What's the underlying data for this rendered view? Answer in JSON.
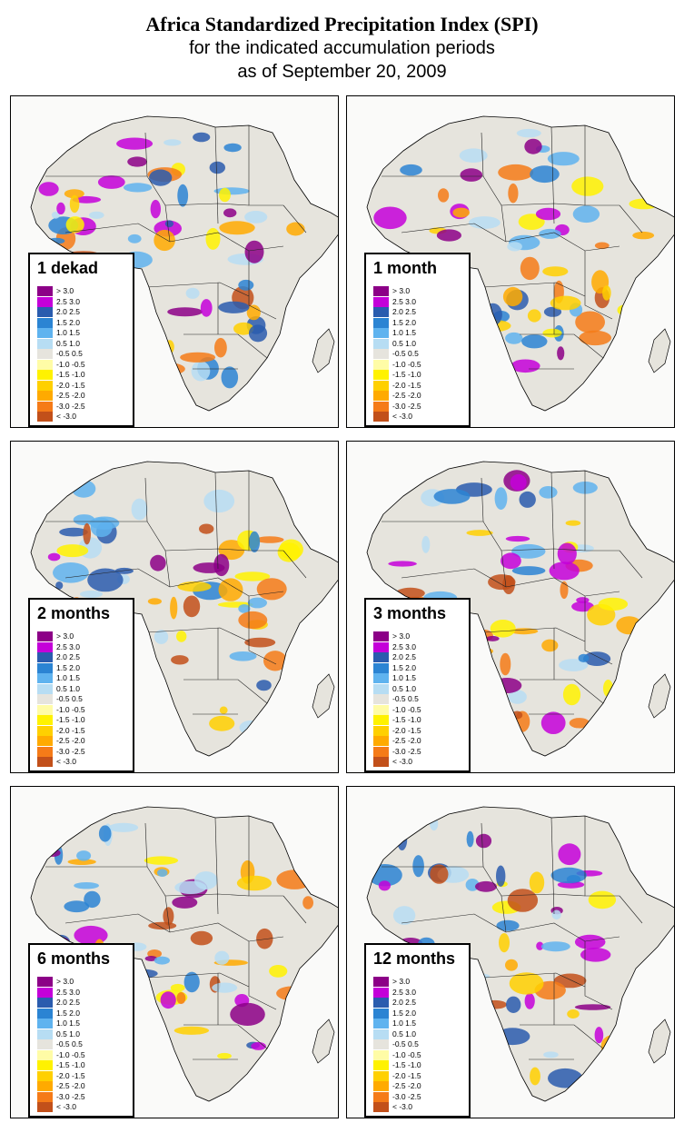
{
  "title": {
    "main": "Africa Standardized Precipitation Index (SPI)",
    "line2": "for the indicated accumulation periods",
    "line3": "as of September 20, 2009"
  },
  "legend": [
    {
      "label": "> 3.0",
      "color": "#8c0087"
    },
    {
      "label": "2.5  3.0",
      "color": "#c400d9"
    },
    {
      "label": "2.0  2.5",
      "color": "#2a5cae"
    },
    {
      "label": "1.5  2.0",
      "color": "#2b84d3"
    },
    {
      "label": "1.0  1.5",
      "color": "#5fb3ef"
    },
    {
      "label": "0.5  1.0",
      "color": "#b7ddf3"
    },
    {
      "label": "-0.5  0.5",
      "color": "#e6e4dd"
    },
    {
      "label": "-1.0 -0.5",
      "color": "#fffca6"
    },
    {
      "label": "-1.5 -1.0",
      "color": "#fff200"
    },
    {
      "label": "-2.0 -1.5",
      "color": "#ffd000"
    },
    {
      "label": "-2.5 -2.0",
      "color": "#ffaa00"
    },
    {
      "label": "-3.0 -2.5",
      "color": "#f57b18"
    },
    {
      "label": "< -3.0",
      "color": "#c2501a"
    }
  ],
  "panels": [
    {
      "period": "1 dekad"
    },
    {
      "period": "1 month"
    },
    {
      "period": "2 months"
    },
    {
      "period": "3 months"
    },
    {
      "period": "6 months"
    },
    {
      "period": "12 months"
    }
  ]
}
